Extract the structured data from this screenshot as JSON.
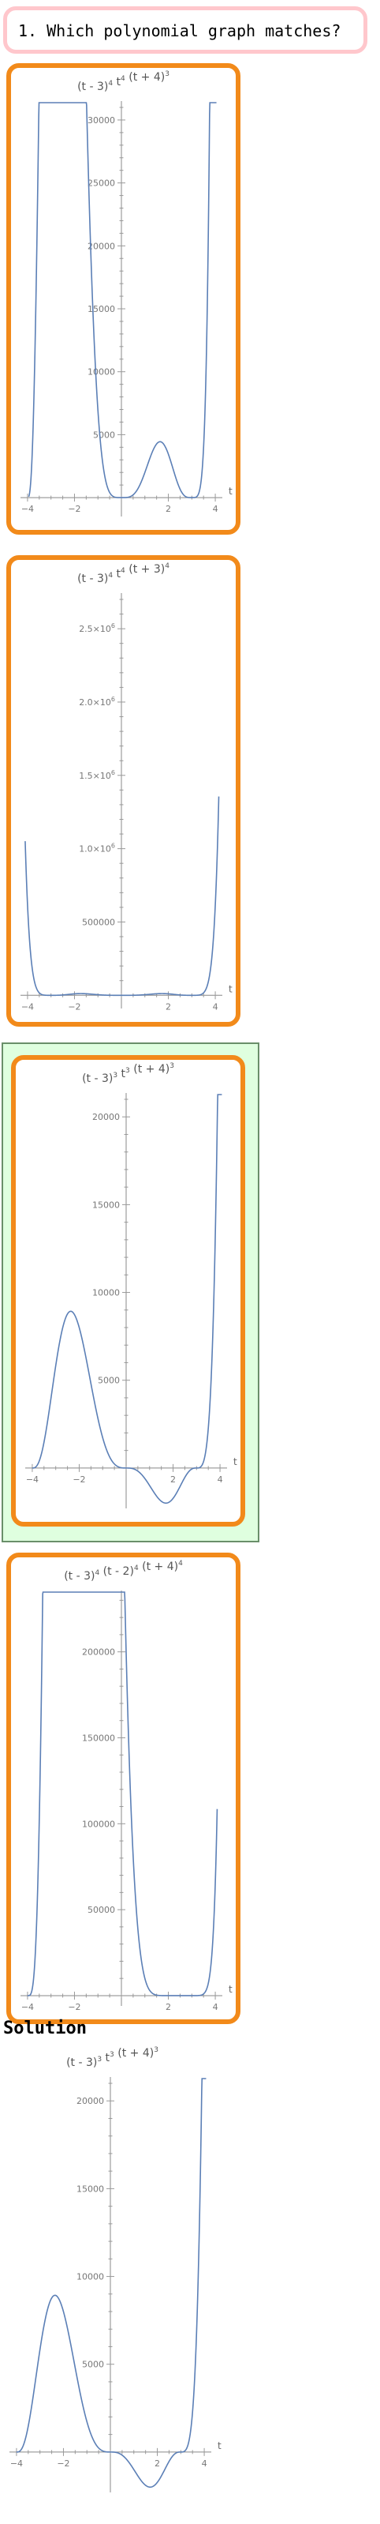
{
  "question": {
    "text": "1. Which polynomial graph matches?"
  },
  "options": [
    {
      "title": {
        "a": "(t - 3)",
        "a_exp": "4",
        "b": " t",
        "b_exp": "4",
        "c": " (t + 4)",
        "c_exp": "3"
      },
      "highlighted": false
    },
    {
      "title": {
        "a": "(t - 3)",
        "a_exp": "4",
        "b": " t",
        "b_exp": "4",
        "c": " (t + 3)",
        "c_exp": "4"
      },
      "highlighted": false
    },
    {
      "title": {
        "a": "(t - 3)",
        "a_exp": "3",
        "b": " t",
        "b_exp": "3",
        "c": " (t + 4)",
        "c_exp": "3"
      },
      "highlighted": true
    },
    {
      "title": {
        "a": "(t - 3)",
        "a_exp": "4",
        "b": " (t - 2)",
        "b_exp": "4",
        "c": " (t + 4)",
        "c_exp": "4"
      },
      "highlighted": false
    }
  ],
  "solution": {
    "heading": "Solution",
    "title": {
      "a": "(t - 3)",
      "a_exp": "3",
      "b": " t",
      "b_exp": "3",
      "c": " (t + 4)",
      "c_exp": "3"
    }
  },
  "chart_data": [
    {
      "type": "line",
      "title": "(t - 3)^4 t^4 (t + 4)^3",
      "xlabel": "t",
      "ylabel": "",
      "xlim": [
        -4.3,
        4.3
      ],
      "ylim": [
        -1500,
        31000
      ],
      "xticks": [
        -4,
        -2,
        2,
        4
      ],
      "yticks": [
        5000,
        10000,
        15000,
        20000,
        25000,
        30000
      ],
      "ytick_labels": [
        "5000",
        "10000",
        "15000",
        "20000",
        "25000",
        "30000"
      ],
      "series": [
        {
          "formula": "(t-3)^4 t^4 (t+4)^3",
          "color": "#5b7fb6",
          "x_range": [
            -3.95,
            4.05
          ]
        }
      ]
    },
    {
      "type": "line",
      "title": "(t - 3)^4 t^4 (t + 3)^4",
      "xlabel": "t",
      "ylabel": "",
      "xlim": [
        -4.3,
        4.3
      ],
      "ylim": [
        -90000,
        2700000
      ],
      "xticks": [
        -4,
        -2,
        2,
        4
      ],
      "yticks": [
        500000,
        1000000,
        1500000,
        2000000,
        2500000
      ],
      "ytick_labels": [
        "500000",
        "1.0×10^6",
        "1.5×10^6",
        "2.0×10^6",
        "2.5×10^6"
      ],
      "series": [
        {
          "formula": "(t-3)^4 t^4 (t+3)^4",
          "color": "#5b7fb6",
          "x_range": [
            -4.1,
            4.15
          ]
        }
      ]
    },
    {
      "type": "line",
      "title": "(t - 3)^3 t^3 (t + 4)^3",
      "xlabel": "t",
      "ylabel": "",
      "xlim": [
        -4.3,
        4.3
      ],
      "ylim": [
        -2300,
        21000
      ],
      "xticks": [
        -4,
        -2,
        2,
        4
      ],
      "yticks": [
        5000,
        10000,
        15000,
        20000
      ],
      "ytick_labels": [
        "5000",
        "10000",
        "15000",
        "20000"
      ],
      "series": [
        {
          "formula": "(t-3)^3 t^3 (t+4)^3",
          "color": "#5b7fb6",
          "x_range": [
            -4.0,
            4.08
          ]
        }
      ]
    },
    {
      "type": "line",
      "title": "(t - 3)^4 (t - 2)^4 (t + 4)^4",
      "xlabel": "t",
      "ylabel": "",
      "xlim": [
        -4.3,
        4.3
      ],
      "ylim": [
        -6000,
        232000
      ],
      "xticks": [
        -4,
        -2,
        2,
        4
      ],
      "yticks": [
        50000,
        100000,
        150000,
        200000
      ],
      "ytick_labels": [
        "50000",
        "100000",
        "150000",
        "200000"
      ],
      "series": [
        {
          "formula": "(t-3)^4 (t-2)^4 (t+4)^4",
          "color": "#5b7fb6",
          "x_range": [
            -4.0,
            4.08
          ]
        }
      ]
    },
    {
      "type": "line",
      "title": "(t - 3)^3 t^3 (t + 4)^3",
      "xlabel": "t",
      "ylabel": "",
      "xlim": [
        -4.3,
        4.3
      ],
      "ylim": [
        -2300,
        21000
      ],
      "xticks": [
        -4,
        -2,
        2,
        4
      ],
      "yticks": [
        5000,
        10000,
        15000,
        20000
      ],
      "ytick_labels": [
        "5000",
        "10000",
        "15000",
        "20000"
      ],
      "series": [
        {
          "formula": "(t-3)^3 t^3 (t+4)^3",
          "color": "#5b7fb6",
          "x_range": [
            -4.0,
            4.08
          ]
        }
      ]
    }
  ]
}
